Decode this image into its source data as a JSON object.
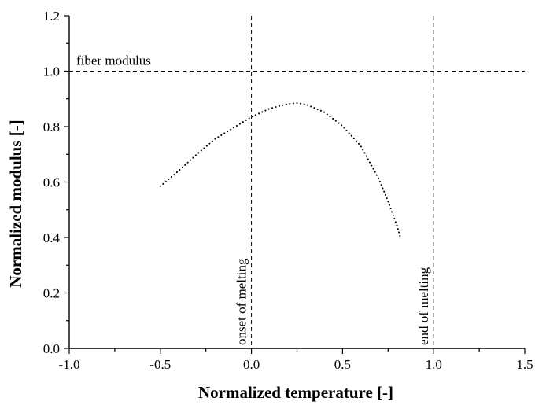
{
  "chart_data": {
    "type": "scatter",
    "title": "",
    "xlabel": "Normalized temperature [-]",
    "ylabel": "Normalized modulus [-]",
    "xlim": [
      -1.0,
      1.5
    ],
    "ylim": [
      0.0,
      1.2
    ],
    "xticks": [
      "-1.0",
      "-0.5",
      "0.0",
      "0.5",
      "1.0",
      "1.5"
    ],
    "yticks": [
      "0.0",
      "0.2",
      "0.4",
      "0.6",
      "0.8",
      "1.0",
      "1.2"
    ],
    "grid": false,
    "line_style": "dotted",
    "series": [
      {
        "x": [
          -0.5,
          -0.4,
          -0.3,
          -0.2,
          -0.1,
          0.0,
          0.1,
          0.2,
          0.25,
          0.3,
          0.4,
          0.5,
          0.6,
          0.7,
          0.75,
          0.8,
          0.82
        ],
        "y": [
          0.585,
          0.64,
          0.7,
          0.755,
          0.795,
          0.835,
          0.865,
          0.882,
          0.885,
          0.88,
          0.852,
          0.802,
          0.73,
          0.61,
          0.53,
          0.44,
          0.395
        ]
      }
    ],
    "reference_lines": [
      {
        "orientation": "horizontal",
        "value": 1.0,
        "label": "fiber modulus"
      },
      {
        "orientation": "vertical",
        "value": 0.0,
        "label": "onset of melting"
      },
      {
        "orientation": "vertical",
        "value": 1.0,
        "label": "end of melting"
      }
    ]
  }
}
